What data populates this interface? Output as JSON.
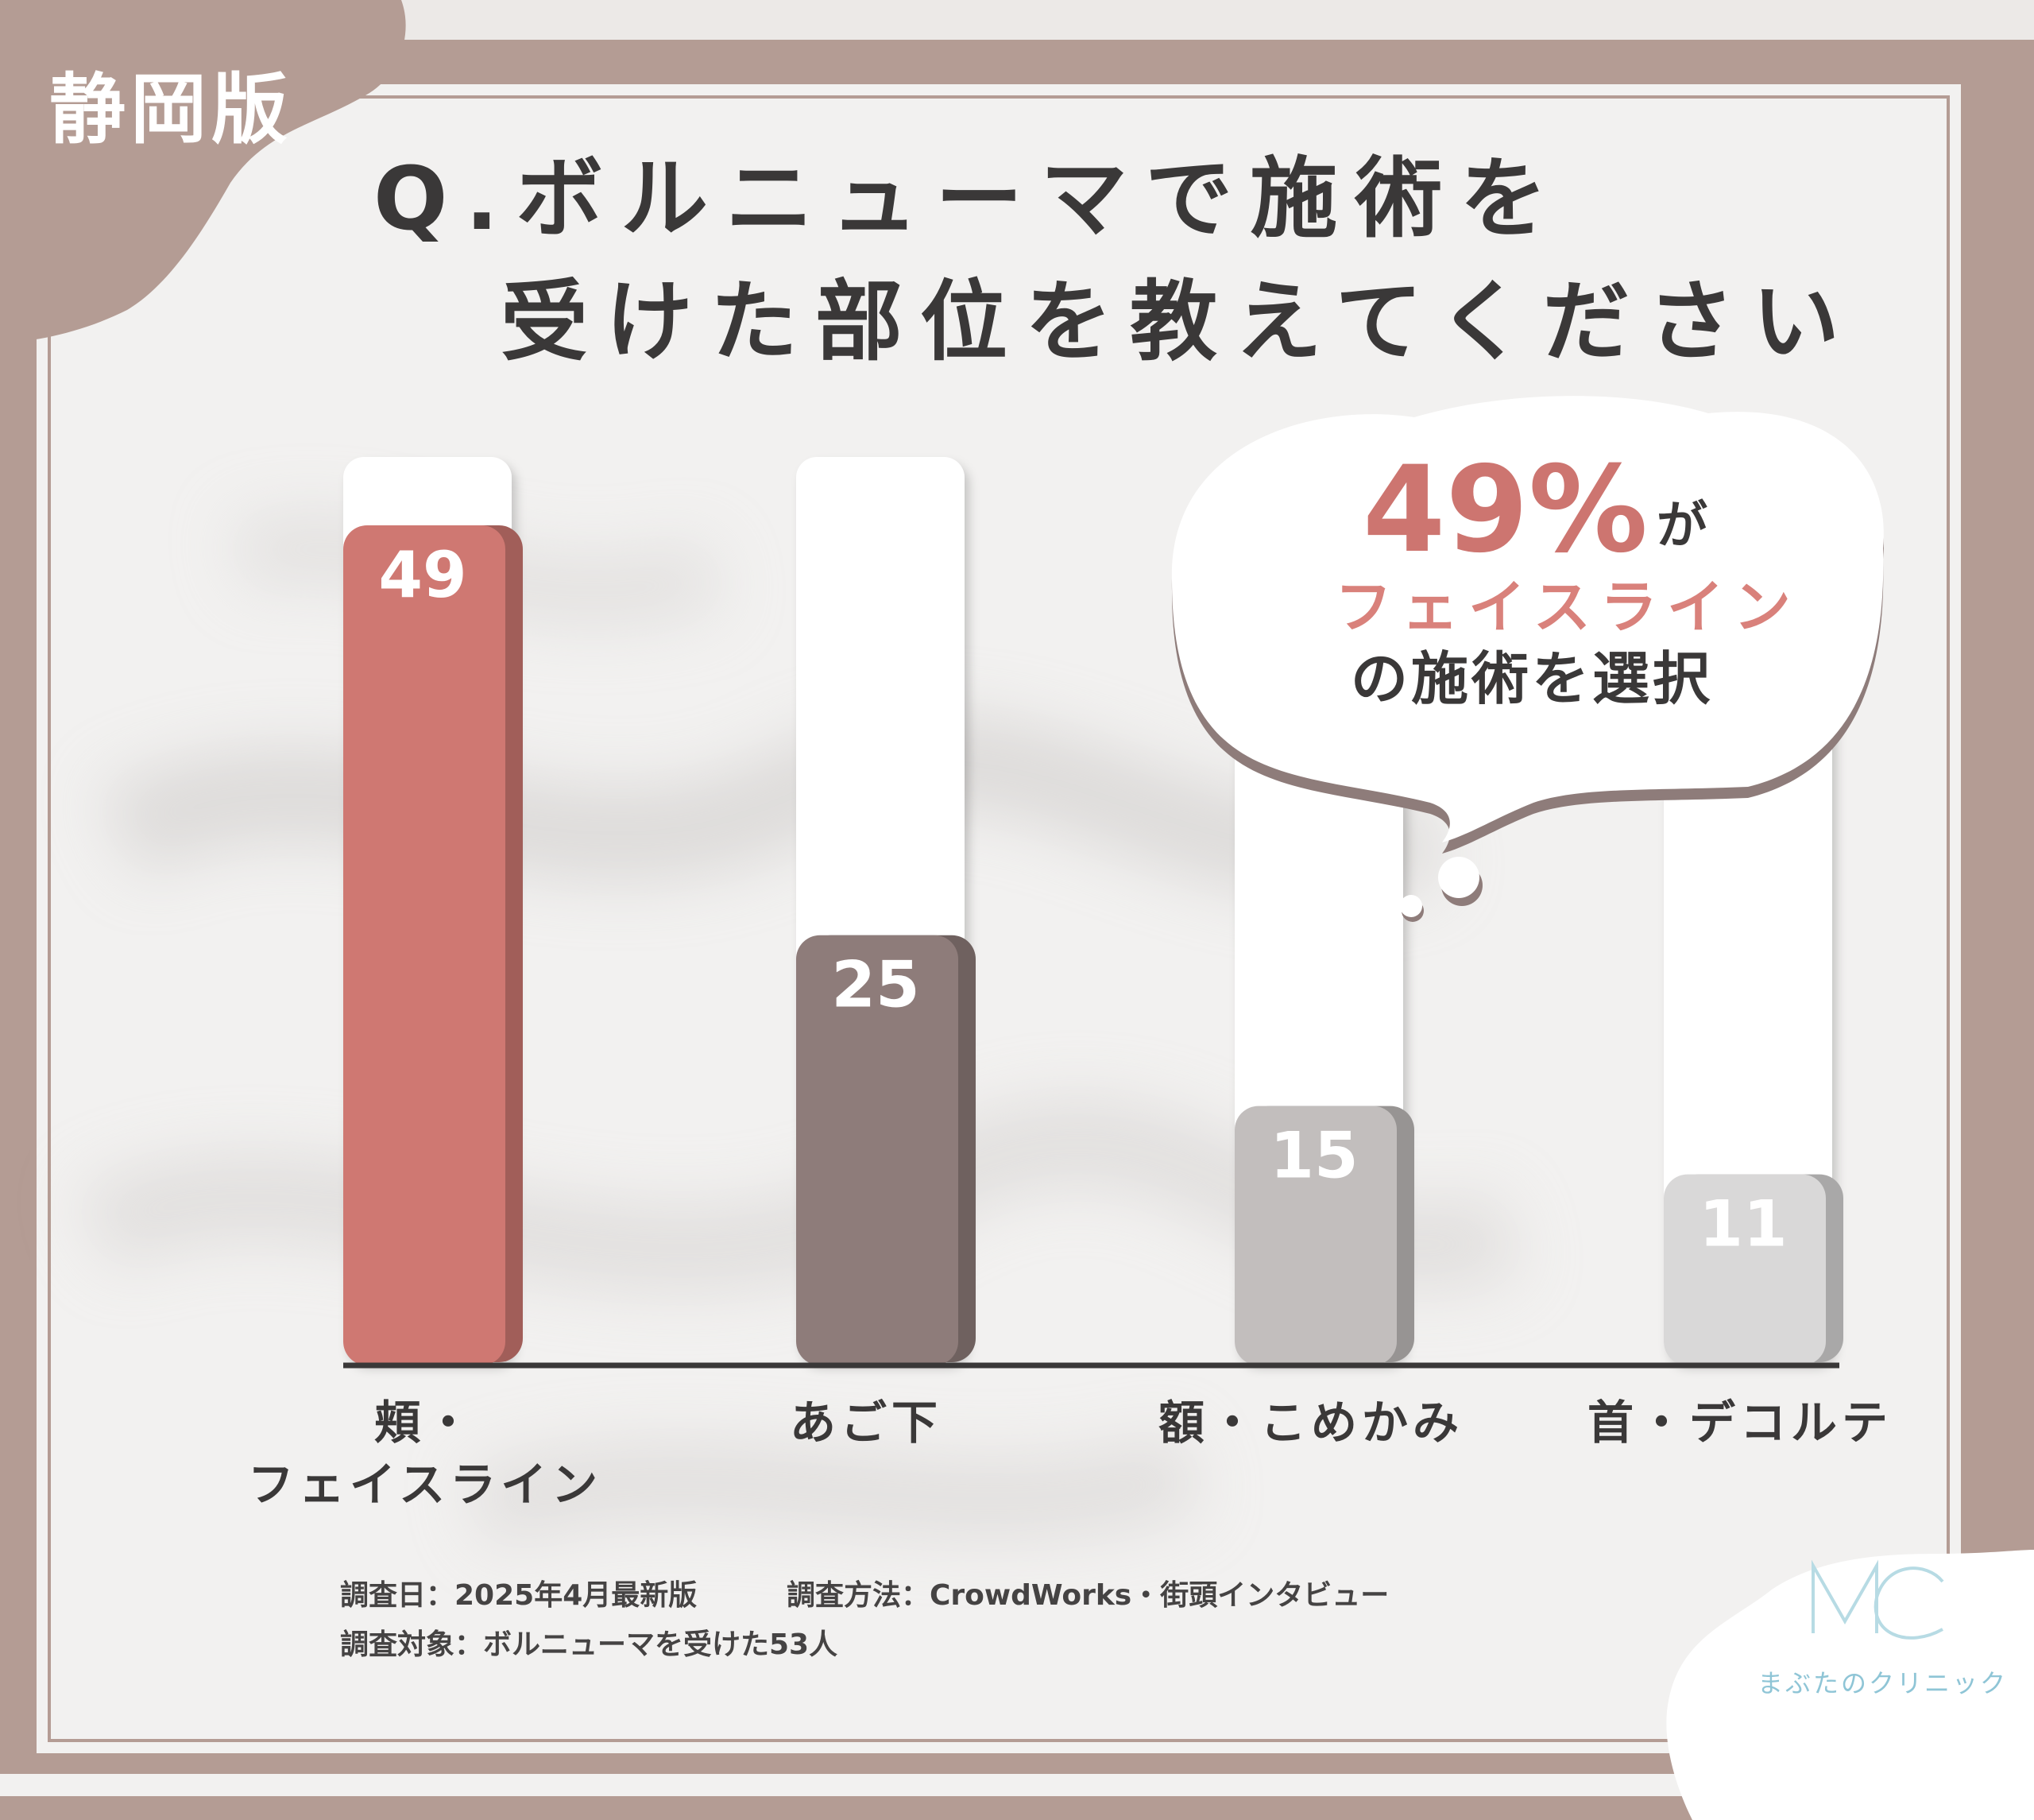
{
  "region_badge": "静岡版",
  "question": {
    "line1": "Q.ボルニューマで施術を",
    "line2": "受けた部位を教えてください"
  },
  "callout": {
    "percent": "49%",
    "particle": "が",
    "highlight": "フェイスライン",
    "text": "の施術を選択"
  },
  "chart_data": {
    "type": "bar",
    "categories": [
      "頬・\nフェイスライン",
      "あご下",
      "額・こめかみ",
      "首・デコルテ"
    ],
    "values": [
      49,
      25,
      15,
      11
    ],
    "ylim": [
      0,
      53
    ],
    "grid": false,
    "legend": "none",
    "bar_colors": [
      "#cf7872",
      "#8e7c7a",
      "#c2bebd",
      "#d9d8d8"
    ],
    "label_color": "#ffffff"
  },
  "survey": {
    "date": "調査日：2025年4月最新版",
    "method": "調査方法：CrowdWorks・街頭インタビュー",
    "target": "調査対象：ボルニューマを受けた53人"
  },
  "logo": {
    "mark": "MC",
    "name": "まぶたのクリニック"
  },
  "colors": {
    "frame": "#b49c94",
    "accent": "#cd7570",
    "logo": "#8fc5d6"
  }
}
